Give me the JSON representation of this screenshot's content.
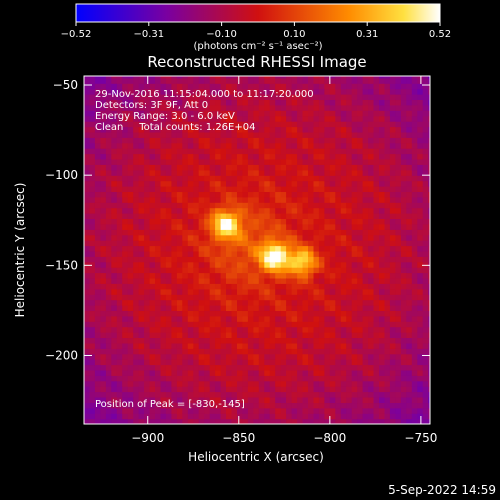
{
  "colorbar": {
    "ticks": [
      "-0.52",
      "-0.31",
      "-0.10",
      "0.10",
      "0.31",
      "0.52"
    ],
    "unit_label": "(photons cm⁻² s⁻¹ asec⁻²)",
    "range": [
      -0.52,
      0.52
    ],
    "colormap": "blue-purple-red-yellow-white"
  },
  "chart_data": {
    "type": "heatmap",
    "title": "Reconstructed RHESSI Image",
    "xlabel": "Heliocentric X (arcsec)",
    "ylabel": "Heliocentric Y (arcsec)",
    "xlim": [
      -935,
      -745
    ],
    "ylim": [
      -238,
      -45
    ],
    "x_ticks": [
      -900,
      -850,
      -800,
      -750
    ],
    "y_ticks": [
      -50,
      -100,
      -150,
      -200
    ],
    "x_tick_labels": [
      "−900",
      "−850",
      "−800",
      "−750"
    ],
    "y_tick_labels": [
      "−50",
      "−100",
      "−150",
      "−200"
    ],
    "annotations": [
      "29-Nov-2016 11:15:04.000 to 11:17:20.000",
      "Detectors: 3F 9F, Att 0",
      "Energy Range: 3.0 - 6.0 keV",
      "Clean     Total counts: 1.26E+04"
    ],
    "peak_label": "Position of Peak = [-830,-145]",
    "peaks": [
      {
        "x": -830,
        "y": -145,
        "value": 0.52
      },
      {
        "x": -857,
        "y": -127,
        "value": 0.45
      },
      {
        "x": -815,
        "y": -148,
        "value": 0.4
      }
    ]
  },
  "footer": {
    "date": "5-Sep-2022 14:59"
  }
}
